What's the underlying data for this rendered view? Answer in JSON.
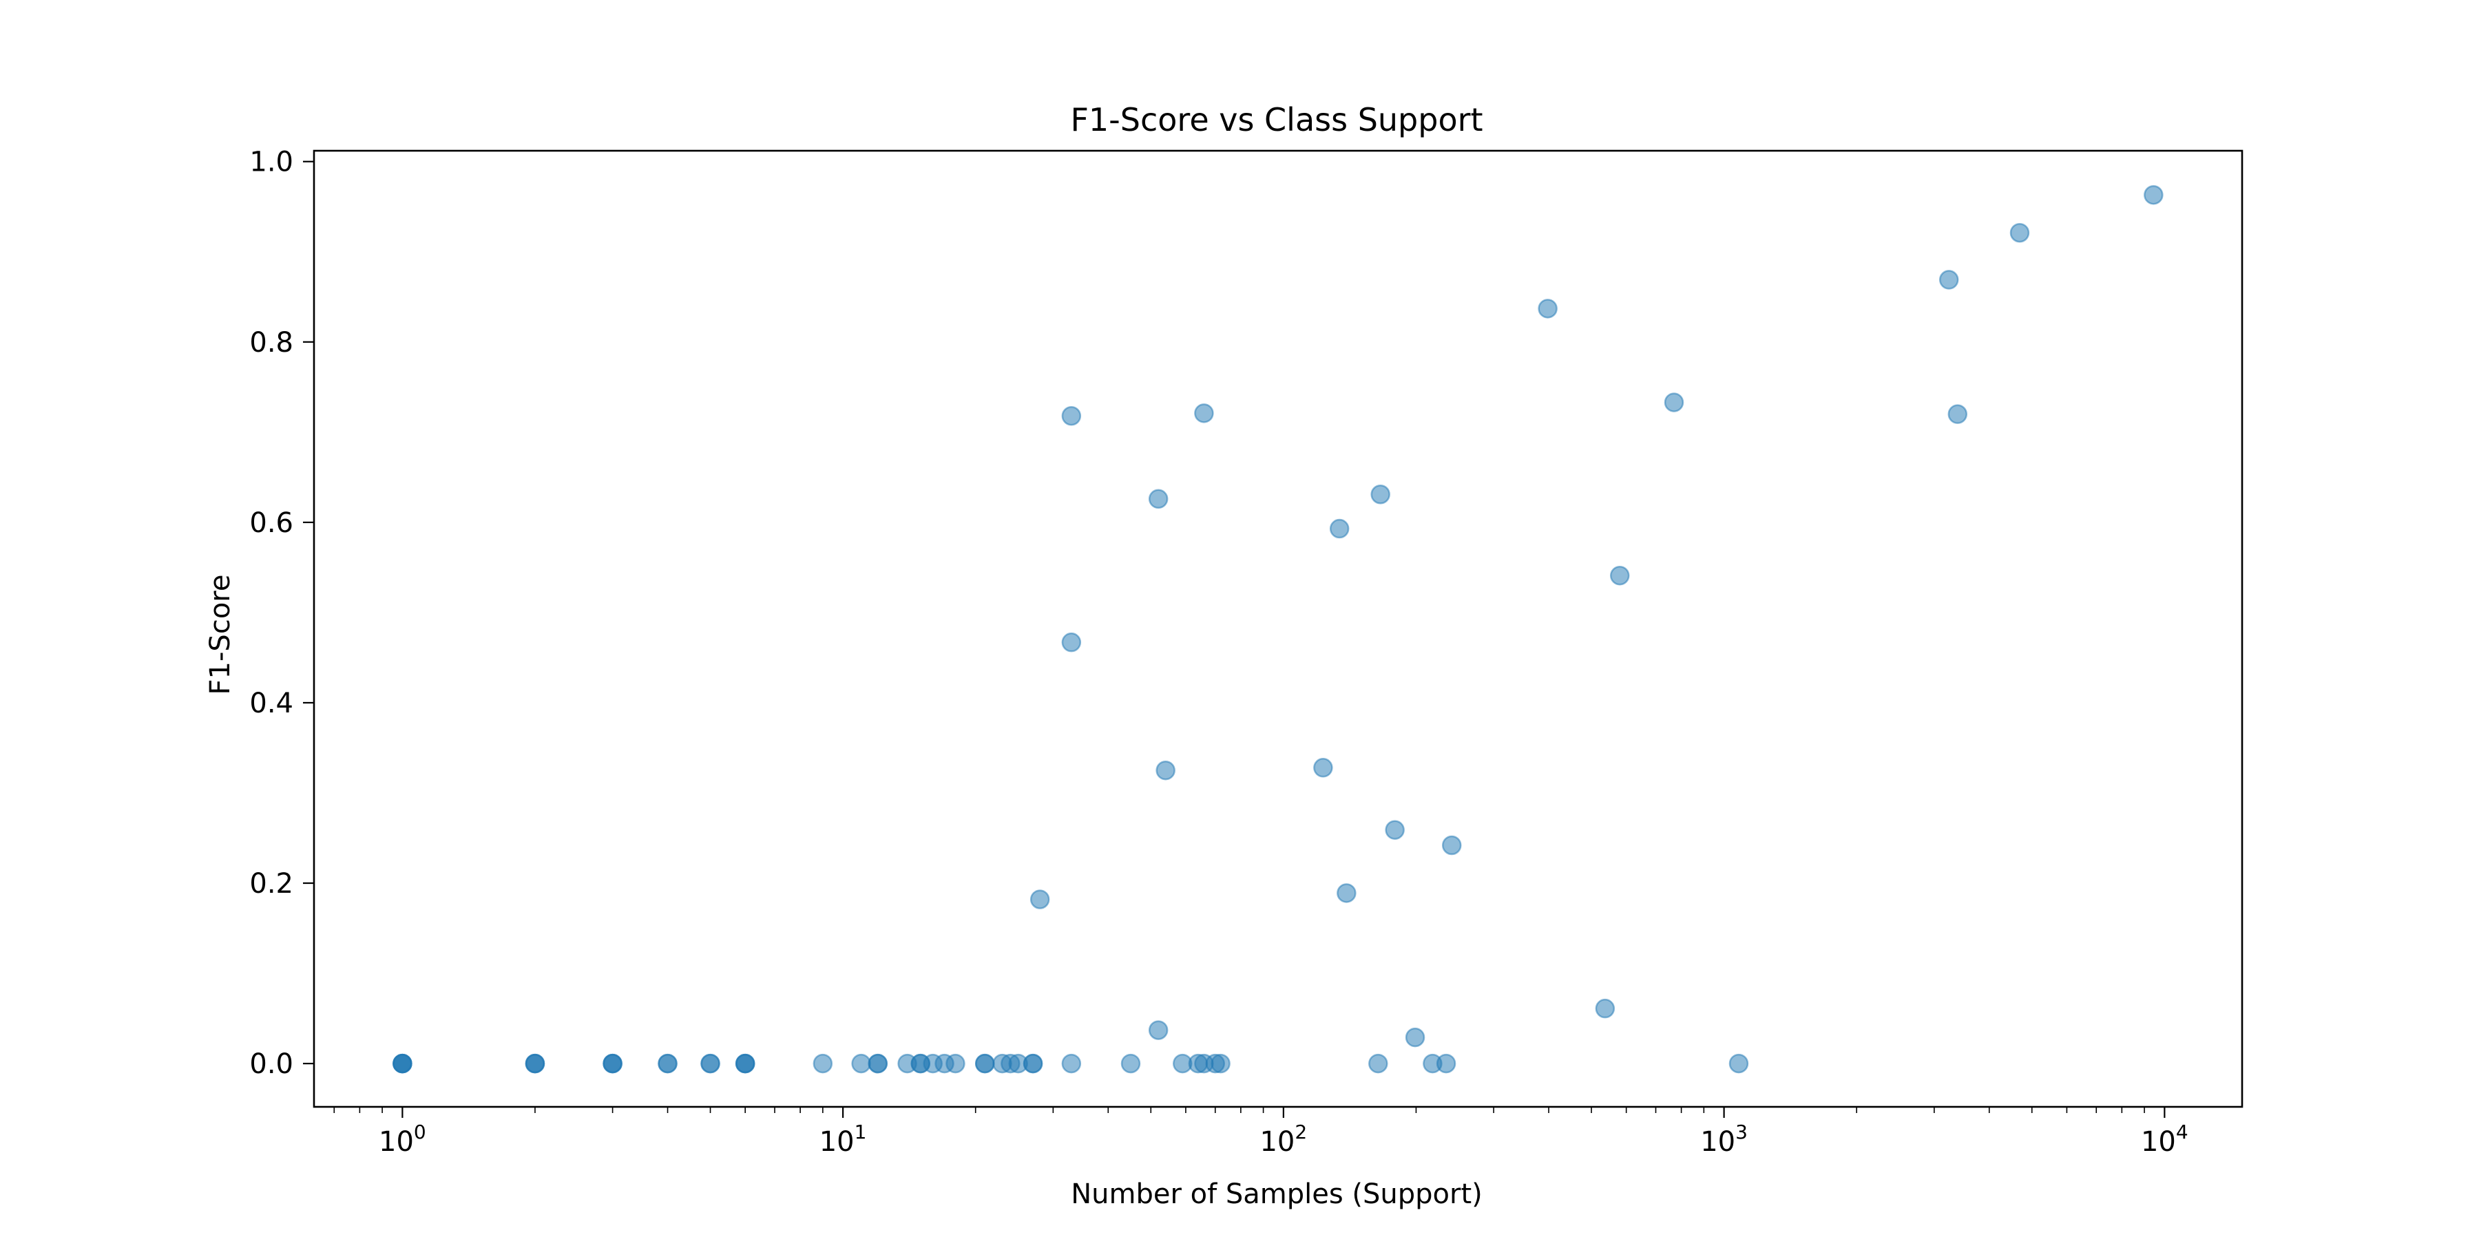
{
  "chart_data": {
    "type": "scatter",
    "title": "F1-Score vs Class Support",
    "xlabel": "Number of Samples (Support)",
    "ylabel": "F1-Score",
    "x_scale": "log",
    "xlim": [
      0.63,
      15000
    ],
    "ylim": [
      -0.048,
      1.012
    ],
    "x_ticks": [
      {
        "base": "10",
        "exp": "0",
        "value": 1
      },
      {
        "base": "10",
        "exp": "1",
        "value": 10
      },
      {
        "base": "10",
        "exp": "2",
        "value": 100
      },
      {
        "base": "10",
        "exp": "3",
        "value": 1000
      },
      {
        "base": "10",
        "exp": "4",
        "value": 10000
      }
    ],
    "y_ticks": [
      "0.0",
      "0.2",
      "0.4",
      "0.6",
      "0.8",
      "1.0"
    ],
    "grid": false,
    "marker_color": "#1f77b4",
    "marker_alpha": 0.5,
    "points": [
      {
        "x": 1,
        "y": 0.0
      },
      {
        "x": 1,
        "y": 0.0
      },
      {
        "x": 1,
        "y": 0.0
      },
      {
        "x": 1,
        "y": 0.0
      },
      {
        "x": 2,
        "y": 0.0
      },
      {
        "x": 2,
        "y": 0.0
      },
      {
        "x": 2,
        "y": 0.0
      },
      {
        "x": 3,
        "y": 0.0
      },
      {
        "x": 3,
        "y": 0.0
      },
      {
        "x": 3,
        "y": 0.0
      },
      {
        "x": 4,
        "y": 0.0
      },
      {
        "x": 4,
        "y": 0.0
      },
      {
        "x": 5,
        "y": 0.0
      },
      {
        "x": 5,
        "y": 0.0
      },
      {
        "x": 6,
        "y": 0.0
      },
      {
        "x": 6,
        "y": 0.0
      },
      {
        "x": 6,
        "y": 0.0
      },
      {
        "x": 9,
        "y": 0.0
      },
      {
        "x": 11,
        "y": 0.0
      },
      {
        "x": 12,
        "y": 0.0
      },
      {
        "x": 12,
        "y": 0.0
      },
      {
        "x": 14,
        "y": 0.0
      },
      {
        "x": 15,
        "y": 0.0
      },
      {
        "x": 15,
        "y": 0.0
      },
      {
        "x": 16,
        "y": 0.0
      },
      {
        "x": 17,
        "y": 0.0
      },
      {
        "x": 18,
        "y": 0.0
      },
      {
        "x": 21,
        "y": 0.0
      },
      {
        "x": 21,
        "y": 0.0
      },
      {
        "x": 23,
        "y": 0.0
      },
      {
        "x": 24,
        "y": 0.0
      },
      {
        "x": 25,
        "y": 0.0
      },
      {
        "x": 27,
        "y": 0.0
      },
      {
        "x": 27,
        "y": 0.0
      },
      {
        "x": 28,
        "y": 0.182
      },
      {
        "x": 33,
        "y": 0.0
      },
      {
        "x": 33,
        "y": 0.467
      },
      {
        "x": 33,
        "y": 0.718
      },
      {
        "x": 45,
        "y": 0.0
      },
      {
        "x": 52,
        "y": 0.037
      },
      {
        "x": 52,
        "y": 0.626
      },
      {
        "x": 54,
        "y": 0.325
      },
      {
        "x": 59,
        "y": 0.0
      },
      {
        "x": 64,
        "y": 0.0
      },
      {
        "x": 66,
        "y": 0.0
      },
      {
        "x": 66,
        "y": 0.721
      },
      {
        "x": 70,
        "y": 0.0
      },
      {
        "x": 72,
        "y": 0.0
      },
      {
        "x": 123,
        "y": 0.328
      },
      {
        "x": 134,
        "y": 0.593
      },
      {
        "x": 139,
        "y": 0.189
      },
      {
        "x": 164,
        "y": 0.0
      },
      {
        "x": 166,
        "y": 0.631
      },
      {
        "x": 179,
        "y": 0.259
      },
      {
        "x": 199,
        "y": 0.029
      },
      {
        "x": 218,
        "y": 0.0
      },
      {
        "x": 234,
        "y": 0.0
      },
      {
        "x": 241,
        "y": 0.242
      },
      {
        "x": 398,
        "y": 0.837
      },
      {
        "x": 537,
        "y": 0.061
      },
      {
        "x": 580,
        "y": 0.541
      },
      {
        "x": 770,
        "y": 0.733
      },
      {
        "x": 1080,
        "y": 0.0
      },
      {
        "x": 3240,
        "y": 0.869
      },
      {
        "x": 3390,
        "y": 0.72
      },
      {
        "x": 4690,
        "y": 0.921
      },
      {
        "x": 9440,
        "y": 0.963
      }
    ]
  }
}
